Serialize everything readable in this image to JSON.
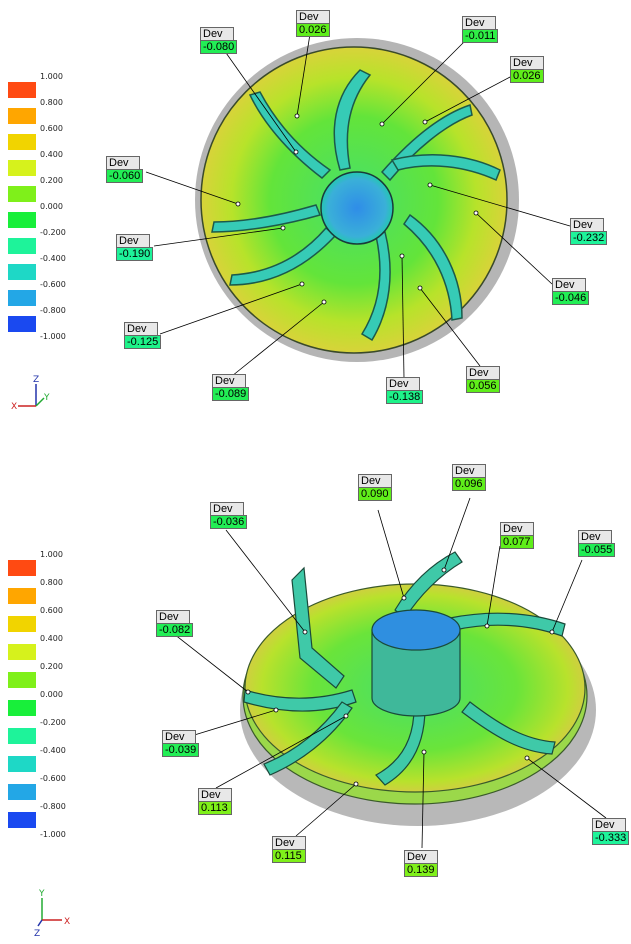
{
  "legend_labels": [
    "1.000",
    "0.800",
    "0.600",
    "0.400",
    "0.200",
    "0.000",
    "-0.200",
    "-0.400",
    "-0.600",
    "-0.800",
    "-1.000"
  ],
  "legend_colors": [
    "#ff4a12",
    "#ffa600",
    "#f1d400",
    "#d6f21c",
    "#7ff01a",
    "#18ef3a",
    "#1ef39a",
    "#1ed8c6",
    "#23a7e6",
    "#1a49f0"
  ],
  "callout_title": "Dev",
  "top": {
    "axes": {
      "up": "Z",
      "right": "Y",
      "left": "X"
    },
    "callouts": [
      {
        "id": "c1",
        "value": "-0.080",
        "color": "#22ee55"
      },
      {
        "id": "c2",
        "value": "0.026",
        "color": "#5fee1a"
      },
      {
        "id": "c3",
        "value": "-0.011",
        "color": "#2fee46"
      },
      {
        "id": "c4",
        "value": "0.026",
        "color": "#5fee1a"
      },
      {
        "id": "c5",
        "value": "-0.060",
        "color": "#22ee55"
      },
      {
        "id": "c6",
        "value": "-0.232",
        "color": "#1ef39a"
      },
      {
        "id": "c7",
        "value": "-0.190",
        "color": "#1ef39a"
      },
      {
        "id": "c8",
        "value": "-0.046",
        "color": "#22ee55"
      },
      {
        "id": "c9",
        "value": "-0.125",
        "color": "#1ef389"
      },
      {
        "id": "c10",
        "value": "-0.089",
        "color": "#22ee55"
      },
      {
        "id": "c11",
        "value": "-0.138",
        "color": "#1ef389"
      },
      {
        "id": "c12",
        "value": "0.056",
        "color": "#5fee1a"
      }
    ]
  },
  "bottom": {
    "axes": {
      "up": "Y",
      "right": "X",
      "left": "Z"
    },
    "callouts": [
      {
        "id": "d1",
        "value": "-0.036",
        "color": "#22ee55"
      },
      {
        "id": "d2",
        "value": "0.090",
        "color": "#5fee1a"
      },
      {
        "id": "d3",
        "value": "0.096",
        "color": "#5fee1a"
      },
      {
        "id": "d4",
        "value": "0.077",
        "color": "#5fee1a"
      },
      {
        "id": "d5",
        "value": "-0.055",
        "color": "#22ee55"
      },
      {
        "id": "d6",
        "value": "-0.082",
        "color": "#22ee55"
      },
      {
        "id": "d7",
        "value": "-0.039",
        "color": "#22ee55"
      },
      {
        "id": "d8",
        "value": "0.113",
        "color": "#7ff01a"
      },
      {
        "id": "d9",
        "value": "0.115",
        "color": "#7ff01a"
      },
      {
        "id": "d10",
        "value": "0.139",
        "color": "#7ff01a"
      },
      {
        "id": "d11",
        "value": "-0.333",
        "color": "#1ef39a"
      }
    ]
  }
}
